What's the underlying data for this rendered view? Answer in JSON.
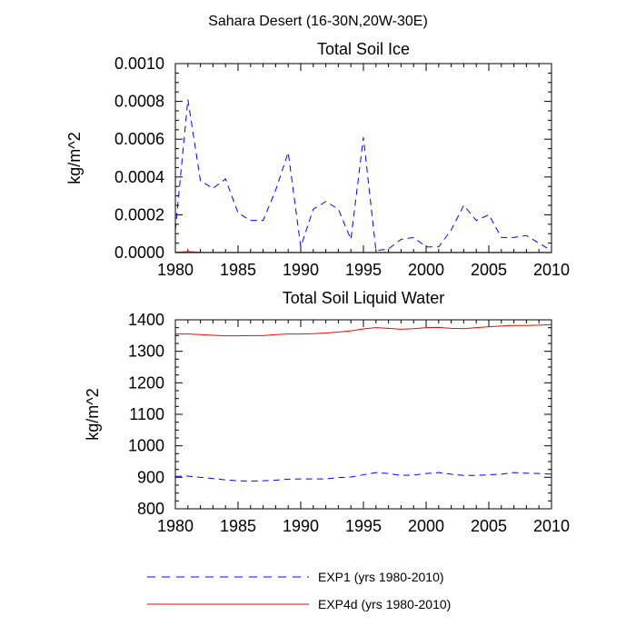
{
  "figure_title": "Sahara Desert (16-30N,20W-30E)",
  "chart_data": [
    {
      "type": "line",
      "title": "Total Soil Ice",
      "xlabel": "",
      "ylabel": "kg/m^2",
      "xlim": [
        1980,
        2010
      ],
      "ylim": [
        0,
        0.001
      ],
      "x_ticks": [
        1980,
        1985,
        1990,
        1995,
        2000,
        2005,
        2010
      ],
      "x_tick_labels": [
        "1980",
        "1985",
        "1990",
        "1995",
        "2000",
        "2005",
        "2010"
      ],
      "y_ticks": [
        0,
        0.0002,
        0.0004,
        0.0006,
        0.0008,
        0.001
      ],
      "y_tick_labels": [
        "0.0000",
        "0.0002",
        "0.0004",
        "0.0006",
        "0.0008",
        "0.0010"
      ],
      "x": [
        1980,
        1981,
        1982,
        1983,
        1984,
        1985,
        1986,
        1987,
        1988,
        1989,
        1990,
        1991,
        1992,
        1993,
        1994,
        1995,
        1996,
        1997,
        1998,
        1999,
        2000,
        2001,
        2002,
        2003,
        2004,
        2005,
        2006,
        2007,
        2008,
        2009,
        2010
      ],
      "series": [
        {
          "name": "EXP1 (yrs 1980-2010)",
          "color": "#0000ff",
          "dash": "dashed",
          "values": [
            0.00012,
            0.00081,
            0.00038,
            0.00034,
            0.00039,
            0.00021,
            0.00017,
            0.00017,
            0.00033,
            0.00053,
            3e-05,
            0.00023,
            0.00027,
            0.00023,
            7e-05,
            0.00061,
            1e-05,
            2e-05,
            7e-05,
            8e-05,
            3e-05,
            3e-05,
            0.00012,
            0.00025,
            0.00017,
            0.0002,
            8e-05,
            8e-05,
            9e-05,
            5e-05,
            1e-05
          ]
        },
        {
          "name": "EXP4d (yrs 1980-2010)",
          "color": "#ff0000",
          "dash": "solid",
          "values": [
            2e-06,
            5e-06,
            2e-06,
            1.5e-06,
            1.5e-06,
            1e-06,
            1e-06,
            1e-06,
            1e-06,
            1e-06,
            1e-06,
            1e-06,
            1e-06,
            1e-06,
            1e-06,
            1e-06,
            1e-06,
            1e-06,
            1e-06,
            1e-06,
            1e-06,
            1e-06,
            1e-06,
            1e-06,
            1e-06,
            1e-06,
            1e-06,
            1e-06,
            1e-06,
            1e-06,
            1e-06
          ]
        }
      ]
    },
    {
      "type": "line",
      "title": "Total Soil Liquid Water",
      "xlabel": "",
      "ylabel": "kg/m^2",
      "xlim": [
        1980,
        2010
      ],
      "ylim": [
        800,
        1400
      ],
      "x_ticks": [
        1980,
        1985,
        1990,
        1995,
        2000,
        2005,
        2010
      ],
      "x_tick_labels": [
        "1980",
        "1985",
        "1990",
        "1995",
        "2000",
        "2005",
        "2010"
      ],
      "y_ticks": [
        800,
        900,
        1000,
        1100,
        1200,
        1300,
        1400
      ],
      "y_tick_labels": [
        "800",
        "900",
        "1000",
        "1100",
        "1200",
        "1300",
        "1400"
      ],
      "x": [
        1980,
        1981,
        1982,
        1983,
        1984,
        1985,
        1986,
        1987,
        1988,
        1989,
        1990,
        1991,
        1992,
        1993,
        1994,
        1995,
        1996,
        1997,
        1998,
        1999,
        2000,
        2001,
        2002,
        2003,
        2004,
        2005,
        2006,
        2007,
        2008,
        2009,
        2010
      ],
      "series": [
        {
          "name": "EXP1 (yrs 1980-2010)",
          "color": "#0000ff",
          "dash": "dashed",
          "values": [
            903,
            904,
            900,
            896,
            892,
            889,
            888,
            889,
            891,
            894,
            895,
            895,
            895,
            899,
            901,
            908,
            915,
            912,
            906,
            907,
            912,
            915,
            910,
            906,
            906,
            908,
            910,
            915,
            913,
            912,
            910
          ]
        },
        {
          "name": "EXP4d (yrs 1980-2010)",
          "color": "#ff0000",
          "dash": "solid",
          "values": [
            1355,
            1355,
            1353,
            1351,
            1349,
            1349,
            1350,
            1350,
            1353,
            1355,
            1355,
            1356,
            1358,
            1361,
            1365,
            1371,
            1375,
            1373,
            1370,
            1372,
            1375,
            1376,
            1373,
            1372,
            1375,
            1378,
            1380,
            1382,
            1382,
            1383,
            1385
          ]
        }
      ]
    }
  ]
}
